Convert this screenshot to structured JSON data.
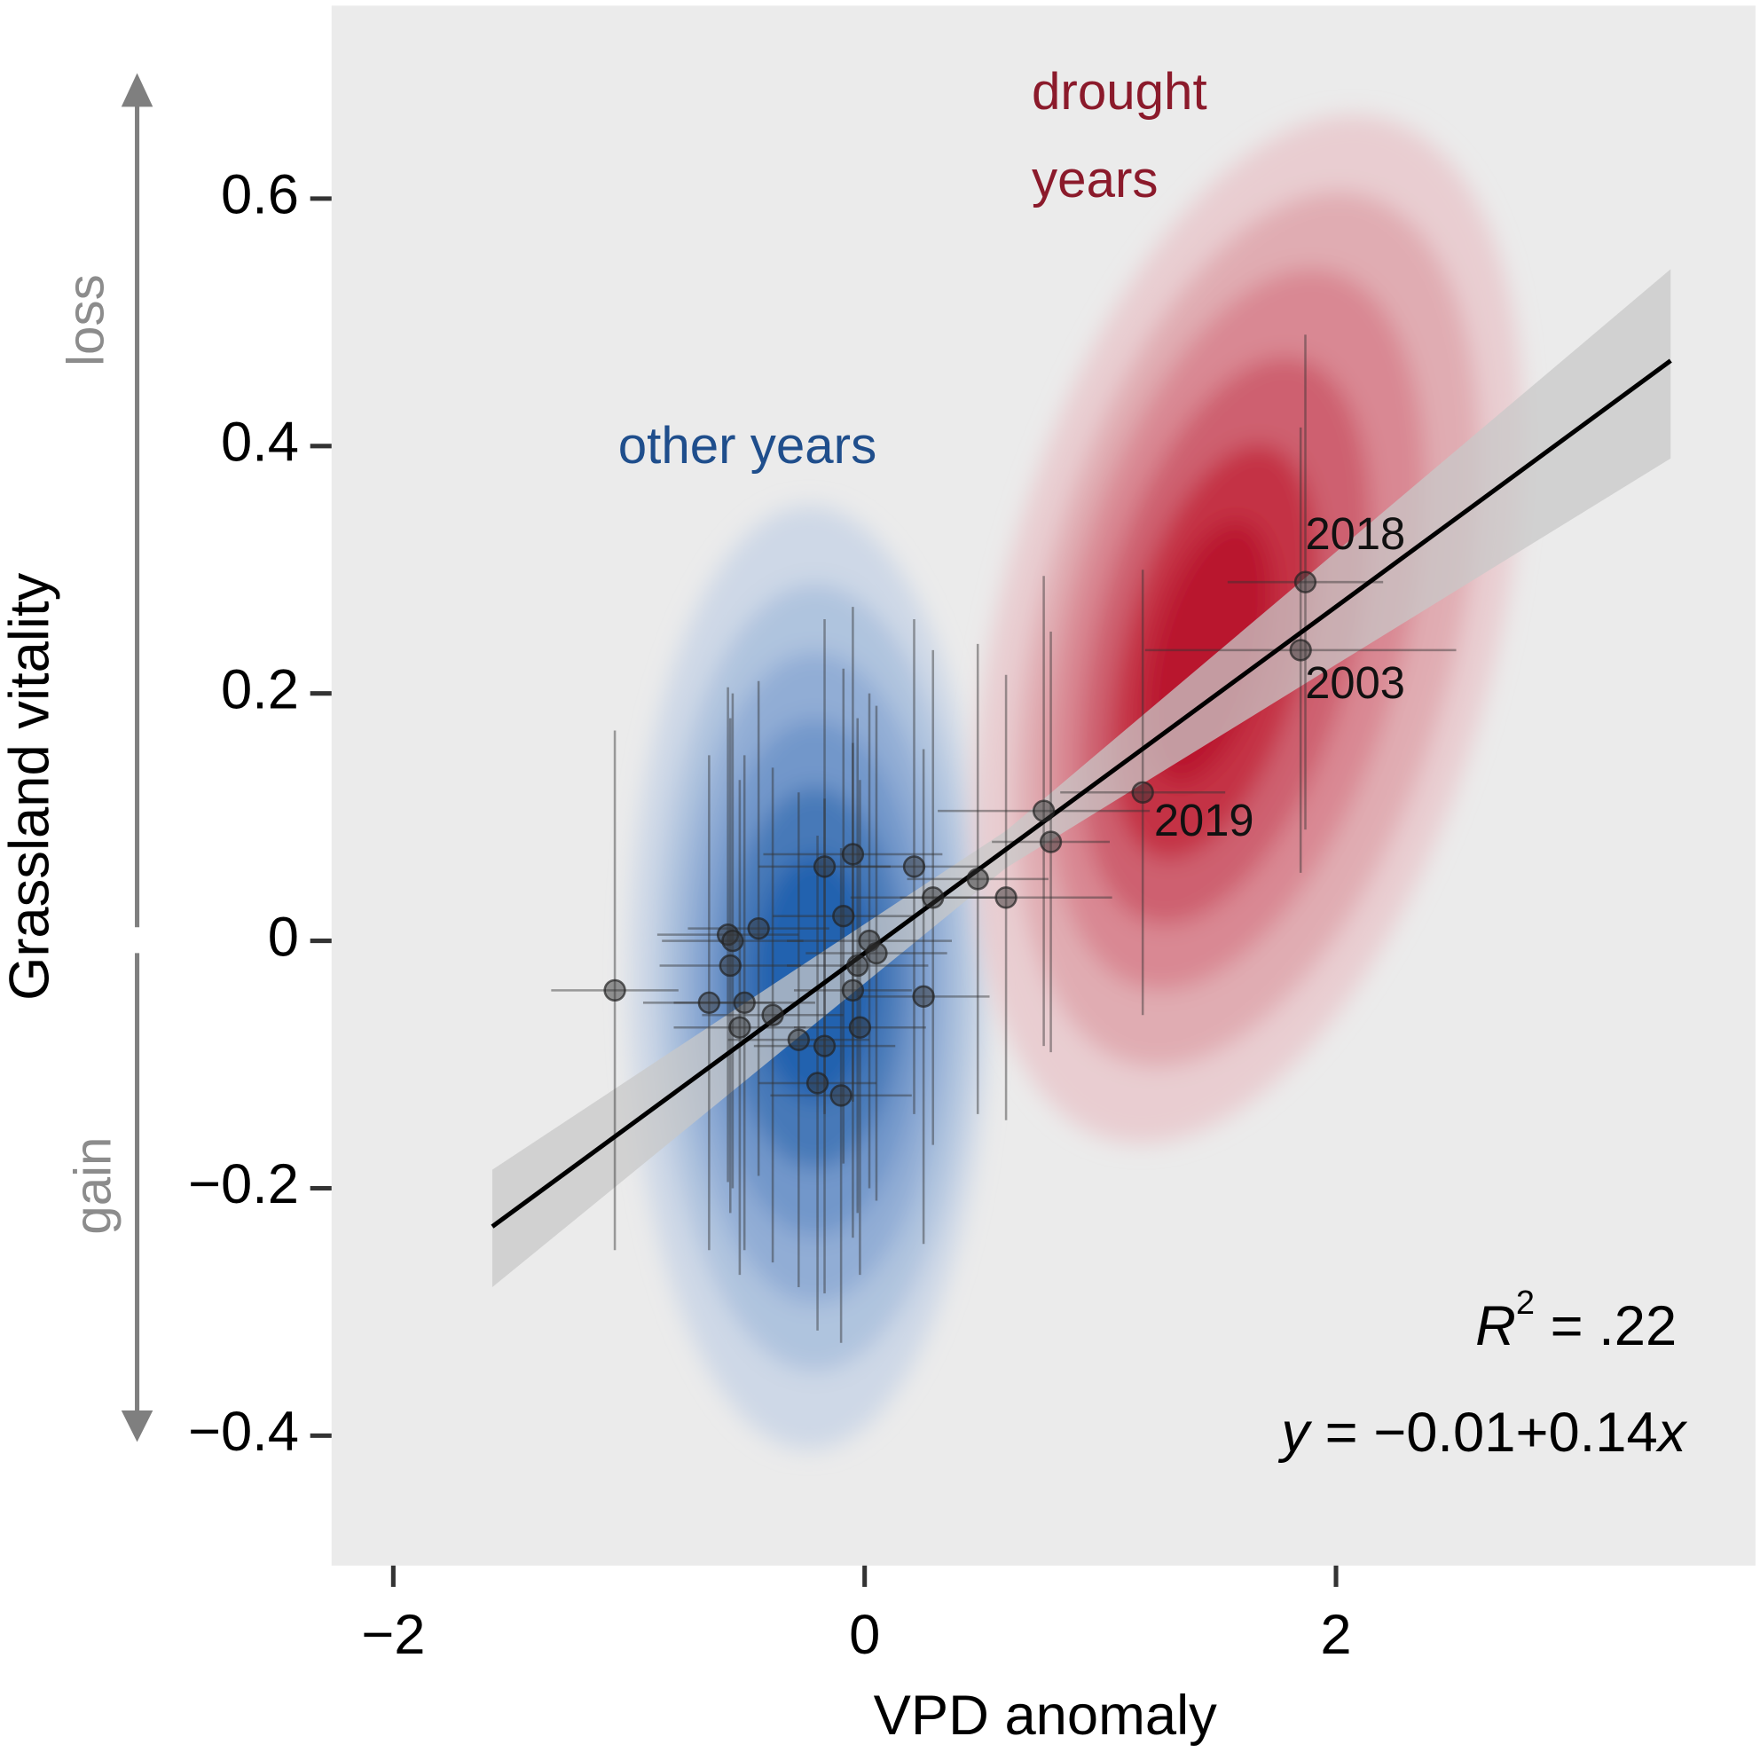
{
  "chart_data": {
    "type": "scatter",
    "xlabel": "VPD anomaly",
    "ylabel": "Grassland vitality",
    "xlim": [
      -2.262,
      3.78
    ],
    "ylim": [
      -0.505,
      0.756
    ],
    "xticks": [
      {
        "value": -2,
        "label": "−2"
      },
      0,
      2
    ],
    "yticks": [
      {
        "value": -0.4,
        "label": "−0.4"
      },
      {
        "value": -0.2,
        "label": "−0.2"
      },
      0,
      0.2,
      0.4,
      0.6
    ],
    "y_direction_labels": {
      "top": "loss",
      "bottom": "gain"
    },
    "group_labels": {
      "other": "other years",
      "drought": [
        "drought",
        "years"
      ]
    },
    "point_color": "#333333",
    "x": [
      -1.06,
      1.87,
      1.85,
      1.18,
      0.76,
      0.79,
      0.6,
      0.48,
      0.29,
      0.21,
      0.25,
      -0.05,
      -0.17,
      -0.09,
      0.02,
      0.05,
      -0.03,
      -0.05,
      -0.02,
      -0.28,
      -0.17,
      -0.2,
      -0.1,
      -0.39,
      -0.45,
      -0.58,
      -0.56,
      -0.57,
      -0.66,
      -0.51,
      -0.53
    ],
    "xerr": [
      0.27,
      0.33,
      0.66,
      0.35,
      0.45,
      0.25,
      0.45,
      0.3,
      0.35,
      0.3,
      0.28,
      0.38,
      0.28,
      0.3,
      0.35,
      0.3,
      0.3,
      0.25,
      0.28,
      0.3,
      0.3,
      0.25,
      0.3,
      0.3,
      0.3,
      0.3,
      0.3,
      0.3,
      0.28,
      0.3,
      0.28
    ],
    "values": [
      -0.04,
      0.29,
      0.235,
      0.12,
      0.105,
      0.08,
      0.035,
      0.05,
      0.035,
      0.06,
      -0.045,
      0.07,
      0.06,
      0.02,
      0,
      -0.01,
      -0.02,
      -0.04,
      -0.07,
      -0.08,
      -0.085,
      -0.115,
      -0.125,
      -0.06,
      0.01,
      0.005,
      0,
      -0.02,
      -0.05,
      -0.05,
      -0.07
    ],
    "yerr": [
      0.21,
      0.2,
      0.18,
      0.18,
      0.19,
      0.17,
      0.18,
      0.19,
      0.2,
      0.2,
      0.2,
      0.2,
      0.2,
      0.2,
      0.2,
      0.2,
      0.2,
      0.2,
      0.2,
      0.2,
      0.2,
      0.2,
      0.2,
      0.2,
      0.2,
      0.2,
      0.2,
      0.2,
      0.2,
      0.2,
      0.2
    ],
    "point_labels": [
      null,
      "2018",
      "2003",
      "2019",
      null,
      null,
      null,
      null,
      null,
      null,
      null,
      null,
      null,
      null,
      null,
      null,
      null,
      null,
      null,
      null,
      null,
      null,
      null,
      null,
      null,
      null,
      null,
      null,
      null,
      null,
      null
    ],
    "fit": {
      "x": [
        -1.58,
        0.6,
        3.42
      ],
      "values": [
        -0.231,
        0.074,
        0.469
      ],
      "upper": [
        -0.185,
        0.089,
        0.543
      ],
      "lower": [
        -0.28,
        0.059,
        0.39
      ],
      "color": "#000000",
      "band_color": "#c8c8c8"
    },
    "r_squared": {
      "symbol": "R",
      "power": "2",
      "text": " = .22"
    },
    "equation": {
      "y": "y",
      "text": " = −0.01+0.14",
      "x": "x"
    }
  }
}
